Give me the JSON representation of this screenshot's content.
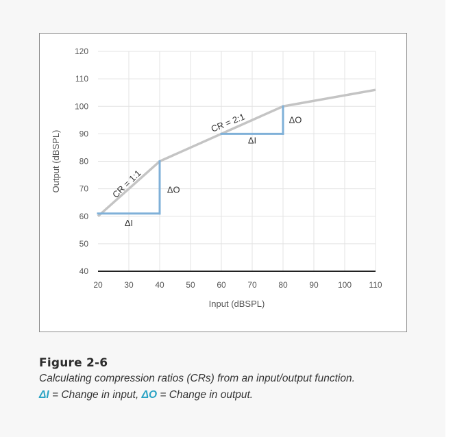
{
  "chart_data": {
    "type": "line",
    "xlabel": "Input (dBSPL)",
    "ylabel": "Output (dBSPL)",
    "xlim": [
      20,
      110
    ],
    "ylim": [
      40,
      120
    ],
    "xticks": [
      20,
      30,
      40,
      50,
      60,
      70,
      80,
      90,
      100,
      110
    ],
    "yticks": [
      40,
      50,
      60,
      70,
      80,
      90,
      100,
      110,
      120
    ],
    "grid": true,
    "colors": {
      "io_line": "#c4c4c4",
      "delta": "#7fb0d8",
      "grid": "#e3e3e3",
      "axis": "#222222"
    },
    "series": [
      {
        "x": [
          20,
          40,
          80,
          110
        ],
        "y": [
          60,
          80,
          100,
          106
        ]
      }
    ],
    "annotations": {
      "segments": [
        {
          "from": [
            20,
            61
          ],
          "to": [
            40,
            61
          ]
        },
        {
          "from": [
            40,
            61
          ],
          "to": [
            40,
            80
          ]
        },
        {
          "from": [
            60,
            90
          ],
          "to": [
            80,
            90
          ]
        },
        {
          "from": [
            80,
            90
          ],
          "to": [
            80,
            100
          ]
        }
      ],
      "labels": [
        {
          "text": "CR = 1:1",
          "at": [
            30,
            71
          ],
          "rotate": -44
        },
        {
          "text": "CR = 2:1",
          "at": [
            62.5,
            93
          ],
          "rotate": -22
        },
        {
          "text": "ΔI",
          "at": [
            30,
            56.5
          ],
          "rotate": 0
        },
        {
          "text": "ΔO",
          "at": [
            44.5,
            68.5
          ],
          "rotate": 0
        },
        {
          "text": "ΔI",
          "at": [
            70,
            86.5
          ],
          "rotate": 0
        },
        {
          "text": "ΔO",
          "at": [
            84,
            94
          ],
          "rotate": 0
        }
      ]
    }
  },
  "caption": {
    "title": "Figure 2-6",
    "line1": "Calculating compression ratios (CRs) from an input/output function.",
    "delta_i": "ΔI",
    "mid1": " = Change in input, ",
    "delta_o": "ΔO",
    "mid2": " = Change in output."
  }
}
